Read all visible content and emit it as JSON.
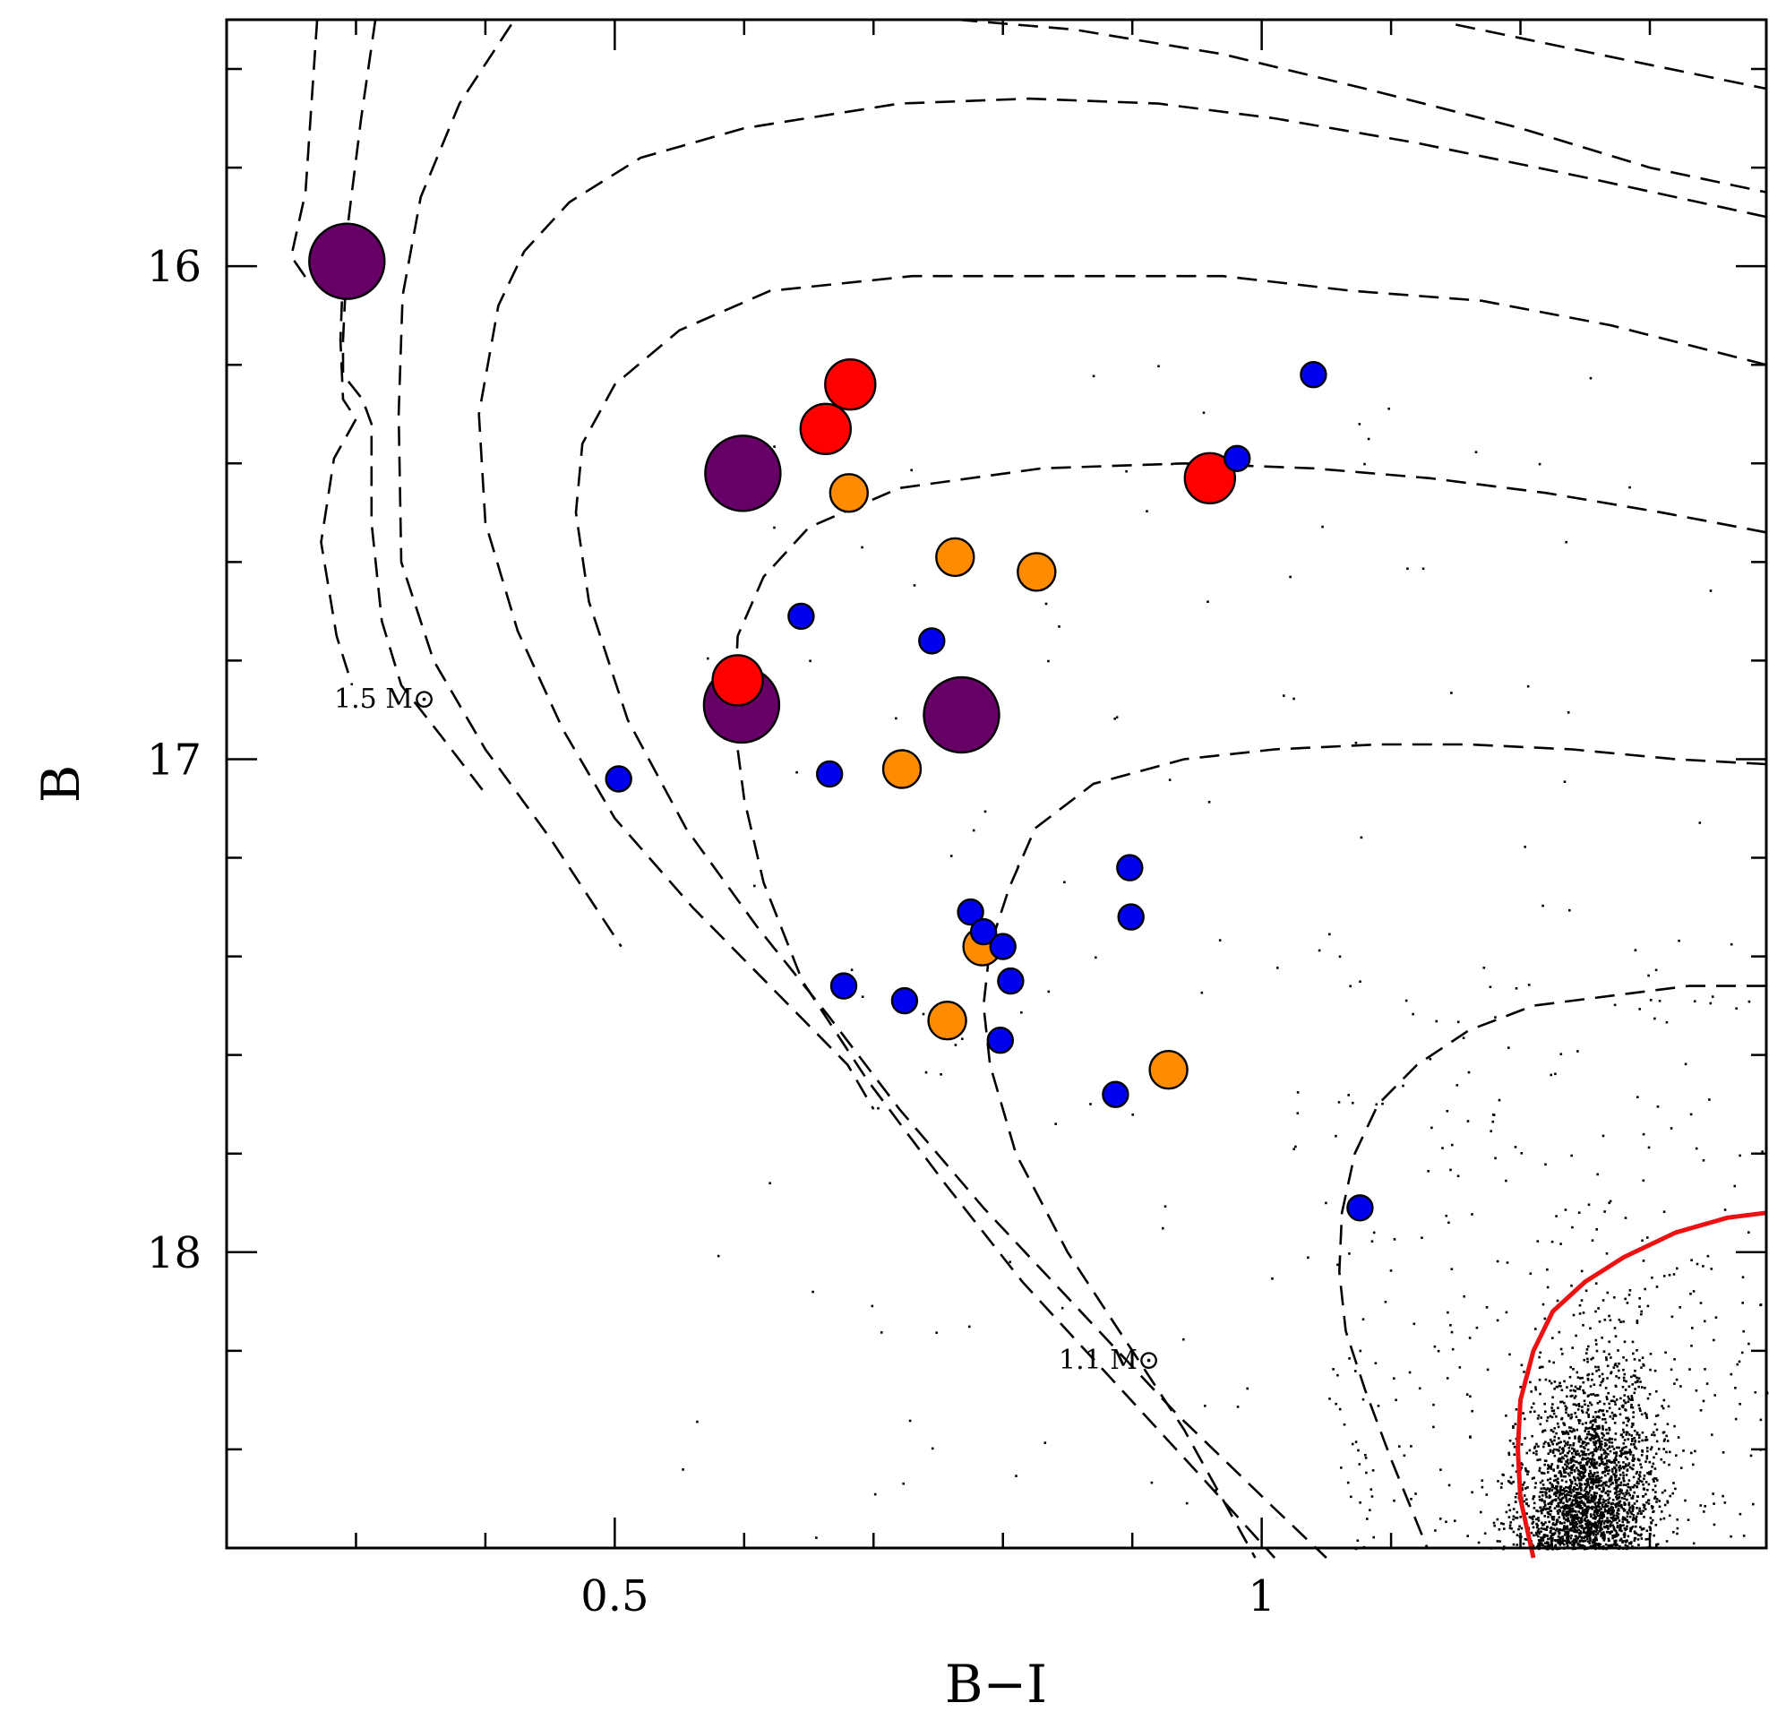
{
  "chart_data": {
    "type": "scatter",
    "xlabel": "B−I",
    "ylabel": "B",
    "xlim": [
      0.2,
      1.39
    ],
    "ylim": [
      18.6,
      15.5
    ],
    "x_major_ticks": [
      0.5,
      1
    ],
    "x_tick_labels": [
      "0.5",
      "1"
    ],
    "x_minor_step": 0.1,
    "y_major_ticks": [
      16,
      17,
      18
    ],
    "y_tick_labels": [
      "16",
      "17",
      "18"
    ],
    "y_minor_step": 0.2,
    "annotations": [
      {
        "text": "1.5 M⊙",
        "x": 0.35,
        "y": 16.96
      },
      {
        "text": "1.1 M⊙",
        "x": 0.91,
        "y": 18.23
      }
    ],
    "colors": {
      "purple": "#660066",
      "red": "#ff0000",
      "orange": "#ff8c00",
      "blue": "#0000ee",
      "ridge": "#ee1111",
      "isochrone": "#000000",
      "dots": "#000000"
    },
    "series": [
      {
        "name": "purple",
        "marker_size": 3,
        "points": [
          [
            0.293,
            15.99
          ],
          [
            0.599,
            16.42
          ],
          [
            0.598,
            16.89
          ],
          [
            0.768,
            16.91
          ]
        ]
      },
      {
        "name": "red",
        "marker_size": 2,
        "points": [
          [
            0.682,
            16.24
          ],
          [
            0.663,
            16.33
          ],
          [
            0.96,
            16.43
          ],
          [
            0.595,
            16.84
          ]
        ]
      },
      {
        "name": "orange",
        "marker_size": 1.5,
        "points": [
          [
            0.681,
            16.46
          ],
          [
            0.763,
            16.59
          ],
          [
            0.826,
            16.62
          ],
          [
            0.722,
            17.02
          ],
          [
            0.784,
            17.38
          ],
          [
            0.757,
            17.53
          ],
          [
            0.928,
            17.63
          ]
        ]
      },
      {
        "name": "blue",
        "marker_size": 1,
        "points": [
          [
            1.04,
            16.22
          ],
          [
            0.981,
            16.39
          ],
          [
            0.644,
            16.71
          ],
          [
            0.745,
            16.76
          ],
          [
            0.503,
            17.04
          ],
          [
            0.666,
            17.03
          ],
          [
            0.898,
            17.22
          ],
          [
            0.899,
            17.32
          ],
          [
            0.775,
            17.31
          ],
          [
            0.785,
            17.35
          ],
          [
            0.8,
            17.38
          ],
          [
            0.806,
            17.45
          ],
          [
            0.677,
            17.46
          ],
          [
            0.724,
            17.49
          ],
          [
            0.798,
            17.57
          ],
          [
            0.887,
            17.68
          ],
          [
            1.076,
            17.91
          ]
        ]
      }
    ],
    "isochrones": [
      [
        [
          0.27,
          15.5
        ],
        [
          0.261,
          15.85
        ],
        [
          0.25,
          15.98
        ],
        [
          0.263,
          16.03
        ],
        [
          0.29,
          16.01
        ],
        [
          0.288,
          16.15
        ],
        [
          0.29,
          16.27
        ],
        [
          0.3,
          16.31
        ],
        [
          0.283,
          16.39
        ],
        [
          0.273,
          16.56
        ],
        [
          0.285,
          16.75
        ],
        [
          0.297,
          16.85
        ]
      ],
      [
        [
          0.315,
          15.5
        ],
        [
          0.304,
          15.7
        ],
        [
          0.294,
          15.91
        ],
        [
          0.292,
          16.04
        ],
        [
          0.29,
          16.15
        ],
        [
          0.29,
          16.22
        ],
        [
          0.305,
          16.27
        ],
        [
          0.312,
          16.32
        ],
        [
          0.312,
          16.52
        ],
        [
          0.32,
          16.72
        ],
        [
          0.335,
          16.85
        ],
        [
          0.365,
          16.95
        ],
        [
          0.4,
          17.07
        ]
      ],
      [
        [
          0.42,
          15.51
        ],
        [
          0.38,
          15.67
        ],
        [
          0.35,
          15.86
        ],
        [
          0.336,
          16.06
        ],
        [
          0.333,
          16.3
        ],
        [
          0.335,
          16.6
        ],
        [
          0.36,
          16.8
        ],
        [
          0.4,
          16.98
        ],
        [
          0.45,
          17.16
        ],
        [
          0.505,
          17.38
        ]
      ],
      [
        [
          0.765,
          15.5
        ],
        [
          0.855,
          15.52
        ],
        [
          0.97,
          15.57
        ],
        [
          1.08,
          15.64
        ],
        [
          1.2,
          15.72
        ],
        [
          1.3,
          15.8
        ],
        [
          1.39,
          15.85
        ]
      ],
      [
        [
          1.15,
          15.51
        ],
        [
          1.26,
          15.57
        ],
        [
          1.39,
          15.64
        ]
      ],
      [
        [
          1.39,
          15.9
        ],
        [
          1.25,
          15.82
        ],
        [
          1.12,
          15.75
        ],
        [
          1.01,
          15.7
        ],
        [
          0.92,
          15.67
        ],
        [
          0.82,
          15.66
        ],
        [
          0.72,
          15.67
        ],
        [
          0.6,
          15.72
        ],
        [
          0.52,
          15.78
        ],
        [
          0.465,
          15.87
        ],
        [
          0.43,
          15.97
        ],
        [
          0.41,
          16.08
        ],
        [
          0.395,
          16.3
        ],
        [
          0.4,
          16.52
        ],
        [
          0.425,
          16.74
        ],
        [
          0.46,
          16.94
        ],
        [
          0.5,
          17.12
        ],
        [
          0.56,
          17.3
        ],
        [
          0.62,
          17.46
        ],
        [
          0.68,
          17.62
        ],
        [
          0.7,
          17.71
        ]
      ],
      [
        [
          1.39,
          16.2
        ],
        [
          1.27,
          16.12
        ],
        [
          1.17,
          16.07
        ],
        [
          1.07,
          16.05
        ],
        [
          0.97,
          16.02
        ],
        [
          0.85,
          16.02
        ],
        [
          0.73,
          16.02
        ],
        [
          0.62,
          16.05
        ],
        [
          0.55,
          16.13
        ],
        [
          0.5,
          16.24
        ],
        [
          0.475,
          16.36
        ],
        [
          0.47,
          16.5
        ],
        [
          0.48,
          16.68
        ],
        [
          0.51,
          16.92
        ],
        [
          0.555,
          17.14
        ],
        [
          0.61,
          17.34
        ],
        [
          0.665,
          17.52
        ],
        [
          0.72,
          17.71
        ],
        [
          0.785,
          17.91
        ],
        [
          0.86,
          18.12
        ],
        [
          0.935,
          18.33
        ],
        [
          1.01,
          18.52
        ],
        [
          1.05,
          18.62
        ]
      ],
      [
        [
          1.39,
          16.54
        ],
        [
          1.31,
          16.5
        ],
        [
          1.22,
          16.46
        ],
        [
          1.13,
          16.43
        ],
        [
          1.04,
          16.41
        ],
        [
          0.94,
          16.4
        ],
        [
          0.83,
          16.41
        ],
        [
          0.72,
          16.45
        ],
        [
          0.65,
          16.53
        ],
        [
          0.615,
          16.63
        ],
        [
          0.595,
          16.75
        ],
        [
          0.592,
          16.92
        ],
        [
          0.6,
          17.08
        ],
        [
          0.615,
          17.25
        ],
        [
          0.645,
          17.45
        ],
        [
          0.695,
          17.65
        ],
        [
          0.755,
          17.86
        ],
        [
          0.815,
          18.06
        ],
        [
          0.885,
          18.26
        ],
        [
          0.955,
          18.46
        ],
        [
          1.01,
          18.62
        ]
      ],
      [
        [
          1.39,
          17.01
        ],
        [
          1.32,
          17.0
        ],
        [
          1.24,
          16.98
        ],
        [
          1.16,
          16.97
        ],
        [
          1.09,
          16.97
        ],
        [
          1.01,
          16.98
        ],
        [
          0.94,
          17.0
        ],
        [
          0.87,
          17.05
        ],
        [
          0.825,
          17.14
        ],
        [
          0.805,
          17.26
        ],
        [
          0.79,
          17.38
        ],
        [
          0.785,
          17.5
        ],
        [
          0.79,
          17.62
        ],
        [
          0.81,
          17.8
        ],
        [
          0.85,
          18.0
        ],
        [
          0.9,
          18.2
        ],
        [
          0.94,
          18.36
        ],
        [
          0.995,
          18.62
        ]
      ],
      [
        [
          1.39,
          17.46
        ],
        [
          1.33,
          17.46
        ],
        [
          1.27,
          17.48
        ],
        [
          1.21,
          17.5
        ],
        [
          1.16,
          17.55
        ],
        [
          1.12,
          17.62
        ],
        [
          1.09,
          17.7
        ],
        [
          1.072,
          17.8
        ],
        [
          1.062,
          17.92
        ],
        [
          1.06,
          18.04
        ],
        [
          1.065,
          18.16
        ],
        [
          1.08,
          18.28
        ],
        [
          1.1,
          18.42
        ],
        [
          1.128,
          18.6
        ]
      ]
    ],
    "fiducial_line": [
      [
        1.21,
        18.62
      ],
      [
        1.2,
        18.5
      ],
      [
        1.198,
        18.4
      ],
      [
        1.2,
        18.3
      ],
      [
        1.21,
        18.2
      ],
      [
        1.225,
        18.12
      ],
      [
        1.25,
        18.06
      ],
      [
        1.28,
        18.01
      ],
      [
        1.32,
        17.96
      ],
      [
        1.36,
        17.93
      ],
      [
        1.39,
        17.92
      ]
    ]
  }
}
